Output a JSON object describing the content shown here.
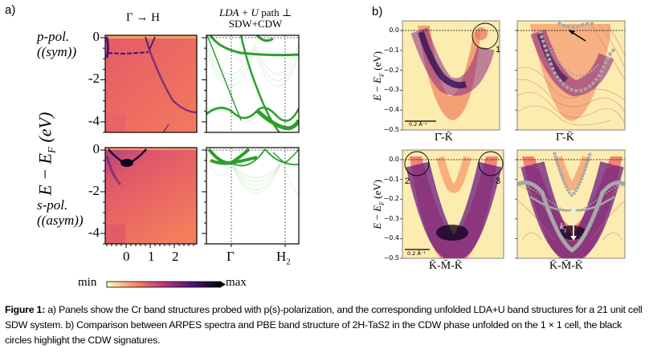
{
  "figure": {
    "panel_a_label": "a)",
    "panel_b_label": "b)",
    "panel_a": {
      "col1_title": "Γ → H",
      "col2_title_line1_italic": "LDA + U",
      "col2_title_line1_rest": " path ⊥",
      "col2_title_line2": "SDW+CDW",
      "row1_label_line1": "p-pol.",
      "row1_label_line2": "(sym)",
      "row2_label_line1": "s-pol.",
      "row2_label_line2": "(asym)",
      "ylabel": "E − E_F (eV)",
      "ylabel_main": "E − E",
      "ylabel_sub": "F",
      "ylabel_unit": " (eV)",
      "yticks": [
        "0",
        "-2",
        "-4"
      ],
      "xticks": [
        "0",
        "1",
        "2"
      ],
      "band_xticks": [
        "Γ",
        "H",
        "2"
      ],
      "colorbar_min": "min",
      "colorbar_max": "max",
      "colormap": [
        "#fcfdbf",
        "#fc8961",
        "#b73779",
        "#51127c",
        "#000004"
      ],
      "band_color": "#2ca02c"
    },
    "panel_b": {
      "yticks": [
        "0.0",
        "−0.1",
        "−0.2",
        "−0.3",
        "−0.4",
        "−0.5"
      ],
      "ylabel": "E − E_F (eV)",
      "top_xlabel": "Γ̄-K̄",
      "bottom_xlabel": "K̄-M̄-K̄",
      "scale_bar_label": "0.2 Å⁻¹",
      "circle_labels": [
        "1",
        "2",
        "3"
      ],
      "kz_label": "k_z",
      "overlay_color": "#a8a8a8"
    },
    "caption": {
      "bold": "Figure 1:",
      "text": " a) Panels show the Cr band structures probed with p(s)-polarization, and the corresponding unfolded LDA+U band structures for a 21 unit cell SDW system. b) Comparison between ARPES spectra and PBE band structure of 2H-TaS2 in the CDW phase unfolded on the 1 × 1 cell, the black circles highlight the CDW signatures."
    }
  }
}
